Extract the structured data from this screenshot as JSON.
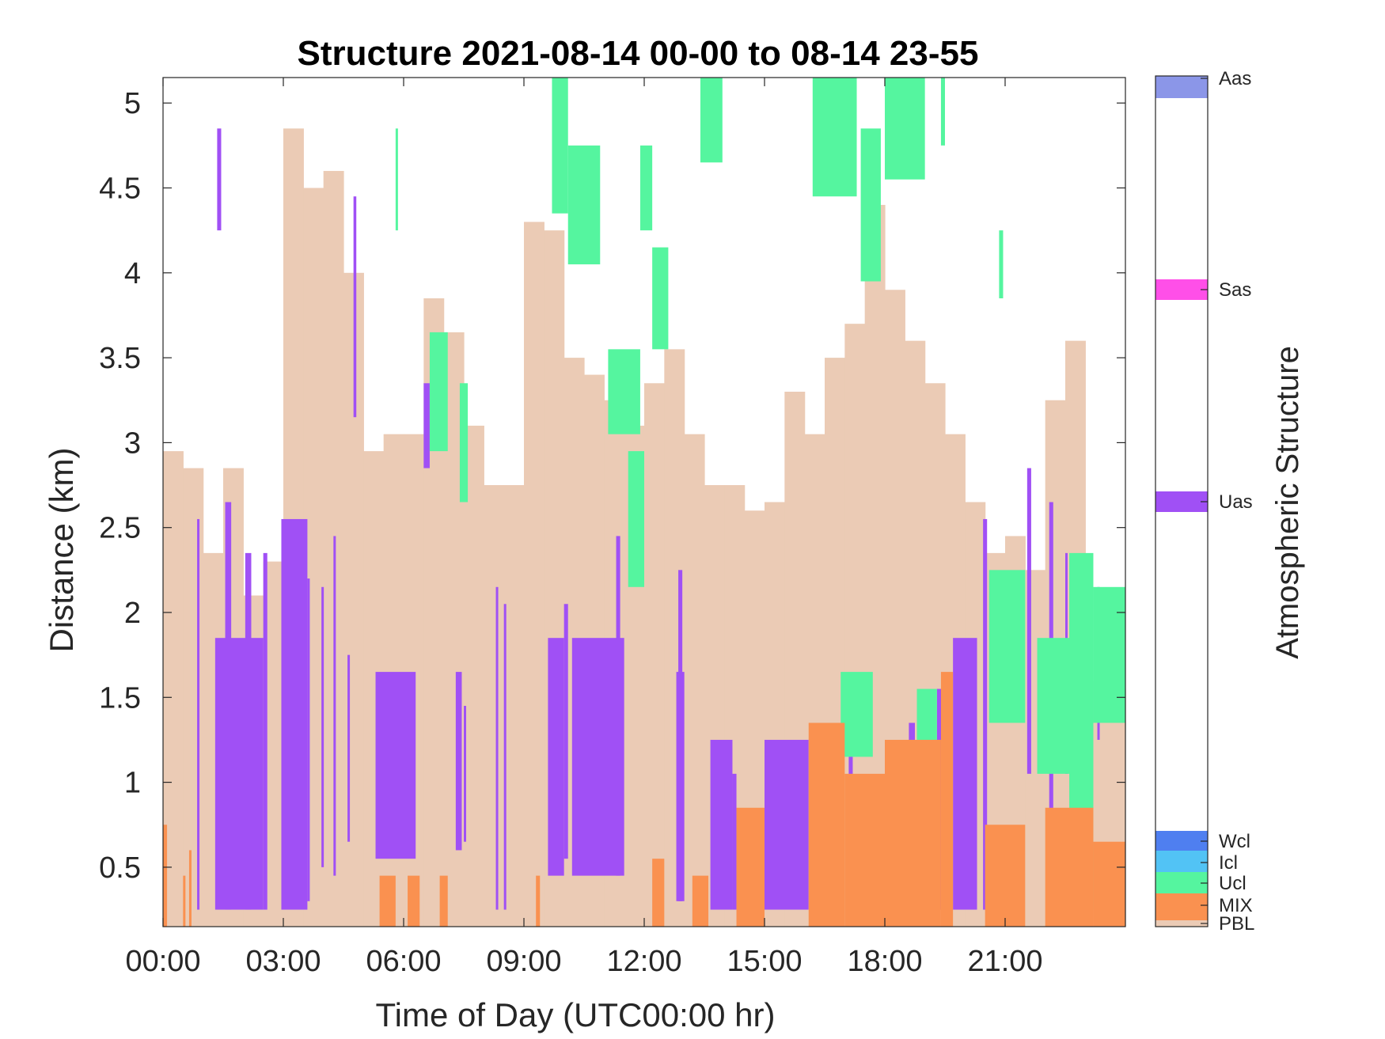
{
  "chart_data": {
    "type": "heatmap",
    "title": "Structure 2021-08-14 00-00 to 08-14 23-55",
    "xlabel": "Time of Day (UTC00:00 hr)",
    "ylabel": "Distance (km)",
    "colorbar_label": "Atmospheric Structure",
    "x_unit": "hours",
    "xlim": [
      0,
      24
    ],
    "ylim": [
      0.15,
      5.15
    ],
    "x_ticks": [
      0,
      3,
      6,
      9,
      12,
      15,
      18,
      21
    ],
    "x_tick_labels": [
      "00:00",
      "03:00",
      "06:00",
      "09:00",
      "12:00",
      "15:00",
      "18:00",
      "21:00"
    ],
    "y_ticks": [
      0.5,
      1,
      1.5,
      2,
      2.5,
      3,
      3.5,
      4,
      4.5,
      5
    ],
    "y_tick_labels": [
      "0.5",
      "1",
      "1.5",
      "2",
      "2.5",
      "3",
      "3.5",
      "4",
      "4.5",
      "5"
    ],
    "grid": false,
    "classes": [
      {
        "label": "Aas",
        "color": "#8b96e8"
      },
      {
        "label": "Sas",
        "color": "#ff4fe8"
      },
      {
        "label": "Uas",
        "color": "#a050f5"
      },
      {
        "label": "Wcl",
        "color": "#4f7ff0"
      },
      {
        "label": "Icl",
        "color": "#52c3f5"
      },
      {
        "label": "Ucl",
        "color": "#55f59f"
      },
      {
        "label": "MIX",
        "color": "#fa9150"
      },
      {
        "label": "PBL",
        "color": "#ebcbb5"
      }
    ],
    "pbl_layer": {
      "class": "PBL",
      "x": [
        0,
        0.5,
        1,
        1.5,
        2,
        2.5,
        3,
        3.5,
        4,
        4.5,
        5,
        5.5,
        6,
        6.5,
        7,
        7.5,
        8,
        8.5,
        9,
        9.5,
        10,
        10.5,
        11,
        11.5,
        12,
        12.5,
        13,
        13.5,
        14,
        14.5,
        15,
        15.5,
        16,
        16.5,
        17,
        17.5,
        18,
        18.5,
        19,
        19.5,
        20,
        20.5,
        21,
        21.5,
        22,
        22.5,
        23,
        23.5,
        24
      ],
      "top_km": [
        2.95,
        2.85,
        2.35,
        2.85,
        2.1,
        2.3,
        4.85,
        4.5,
        4.6,
        4.0,
        2.95,
        3.05,
        3.05,
        3.85,
        3.65,
        3.1,
        2.75,
        2.75,
        4.3,
        4.25,
        3.5,
        3.4,
        3.25,
        3.1,
        3.35,
        3.55,
        3.05,
        2.75,
        2.75,
        2.6,
        2.65,
        3.3,
        3.05,
        3.5,
        3.7,
        4.4,
        3.9,
        3.6,
        3.35,
        3.05,
        2.65,
        2.35,
        2.45,
        2.25,
        3.25,
        3.6,
        1.6,
        1.55,
        1.55
      ]
    },
    "segments": [
      {
        "class": "Uas",
        "x0": 0.85,
        "x1": 0.9,
        "y0": 0.25,
        "y1": 2.55
      },
      {
        "class": "Uas",
        "x0": 1.3,
        "x1": 2.5,
        "y0": 0.25,
        "y1": 1.85
      },
      {
        "class": "Uas",
        "x0": 1.35,
        "x1": 1.45,
        "y0": 4.25,
        "y1": 4.85
      },
      {
        "class": "Uas",
        "x0": 1.55,
        "x1": 1.7,
        "y0": 0.25,
        "y1": 2.65
      },
      {
        "class": "Uas",
        "x0": 2.05,
        "x1": 2.2,
        "y0": 0.25,
        "y1": 2.35
      },
      {
        "class": "Uas",
        "x0": 2.5,
        "x1": 2.6,
        "y0": 0.25,
        "y1": 2.35
      },
      {
        "class": "Uas",
        "x0": 2.95,
        "x1": 3.6,
        "y0": 0.25,
        "y1": 2.55
      },
      {
        "class": "Uas",
        "x0": 3.6,
        "x1": 3.65,
        "y0": 0.3,
        "y1": 2.2
      },
      {
        "class": "Uas",
        "x0": 3.95,
        "x1": 4.0,
        "y0": 0.5,
        "y1": 2.15
      },
      {
        "class": "Uas",
        "x0": 4.25,
        "x1": 4.3,
        "y0": 0.45,
        "y1": 2.45
      },
      {
        "class": "Uas",
        "x0": 4.6,
        "x1": 4.65,
        "y0": 0.65,
        "y1": 1.75
      },
      {
        "class": "Uas",
        "x0": 4.75,
        "x1": 4.82,
        "y0": 3.15,
        "y1": 4.45
      },
      {
        "class": "Uas",
        "x0": 5.3,
        "x1": 6.3,
        "y0": 0.55,
        "y1": 1.65
      },
      {
        "class": "Uas",
        "x0": 6.5,
        "x1": 6.65,
        "y0": 2.85,
        "y1": 3.35
      },
      {
        "class": "Uas",
        "x0": 7.3,
        "x1": 7.45,
        "y0": 0.6,
        "y1": 1.65
      },
      {
        "class": "Uas",
        "x0": 7.5,
        "x1": 7.55,
        "y0": 0.65,
        "y1": 1.45
      },
      {
        "class": "Uas",
        "x0": 8.3,
        "x1": 8.35,
        "y0": 0.25,
        "y1": 2.15
      },
      {
        "class": "Uas",
        "x0": 8.5,
        "x1": 8.55,
        "y0": 0.25,
        "y1": 2.05
      },
      {
        "class": "Uas",
        "x0": 9.6,
        "x1": 10.0,
        "y0": 0.45,
        "y1": 1.85
      },
      {
        "class": "Uas",
        "x0": 10.0,
        "x1": 10.1,
        "y0": 0.55,
        "y1": 2.05
      },
      {
        "class": "Uas",
        "x0": 10.2,
        "x1": 11.5,
        "y0": 0.45,
        "y1": 1.85
      },
      {
        "class": "Uas",
        "x0": 11.3,
        "x1": 11.4,
        "y0": 0.45,
        "y1": 2.45
      },
      {
        "class": "Uas",
        "x0": 12.8,
        "x1": 13.0,
        "y0": 0.3,
        "y1": 1.65
      },
      {
        "class": "Uas",
        "x0": 12.85,
        "x1": 12.95,
        "y0": 0.3,
        "y1": 2.25
      },
      {
        "class": "Uas",
        "x0": 13.65,
        "x1": 14.2,
        "y0": 0.25,
        "y1": 1.25
      },
      {
        "class": "Uas",
        "x0": 14.2,
        "x1": 14.3,
        "y0": 0.25,
        "y1": 1.05
      },
      {
        "class": "Uas",
        "x0": 15.0,
        "x1": 16.1,
        "y0": 0.25,
        "y1": 1.25
      },
      {
        "class": "Uas",
        "x0": 17.1,
        "x1": 17.2,
        "y0": 0.35,
        "y1": 1.55
      },
      {
        "class": "Uas",
        "x0": 18.6,
        "x1": 18.75,
        "y0": 0.25,
        "y1": 1.35
      },
      {
        "class": "Uas",
        "x0": 19.3,
        "x1": 19.45,
        "y0": 0.25,
        "y1": 1.55
      },
      {
        "class": "Uas",
        "x0": 19.7,
        "x1": 20.3,
        "y0": 0.25,
        "y1": 1.85
      },
      {
        "class": "Uas",
        "x0": 20.45,
        "x1": 20.55,
        "y0": 0.25,
        "y1": 2.55
      },
      {
        "class": "Uas",
        "x0": 21.55,
        "x1": 21.65,
        "y0": 1.05,
        "y1": 2.85
      },
      {
        "class": "Uas",
        "x0": 22.1,
        "x1": 22.2,
        "y0": 0.55,
        "y1": 2.65
      },
      {
        "class": "Uas",
        "x0": 22.5,
        "x1": 22.55,
        "y0": 1.05,
        "y1": 2.35
      },
      {
        "class": "Uas",
        "x0": 23.3,
        "x1": 23.35,
        "y0": 1.25,
        "y1": 2.15
      },
      {
        "class": "Ucl",
        "x0": 5.8,
        "x1": 5.85,
        "y0": 4.25,
        "y1": 4.85
      },
      {
        "class": "Ucl",
        "x0": 6.65,
        "x1": 7.1,
        "y0": 2.95,
        "y1": 3.65
      },
      {
        "class": "Ucl",
        "x0": 7.4,
        "x1": 7.6,
        "y0": 2.65,
        "y1": 3.35
      },
      {
        "class": "Ucl",
        "x0": 9.7,
        "x1": 10.1,
        "y0": 4.35,
        "y1": 5.15
      },
      {
        "class": "Ucl",
        "x0": 10.1,
        "x1": 10.9,
        "y0": 4.05,
        "y1": 4.75
      },
      {
        "class": "Ucl",
        "x0": 11.1,
        "x1": 11.9,
        "y0": 3.05,
        "y1": 3.55
      },
      {
        "class": "Ucl",
        "x0": 11.6,
        "x1": 12.0,
        "y0": 2.15,
        "y1": 2.95
      },
      {
        "class": "Ucl",
        "x0": 11.9,
        "x1": 12.2,
        "y0": 4.25,
        "y1": 4.75
      },
      {
        "class": "Ucl",
        "x0": 12.2,
        "x1": 12.6,
        "y0": 3.55,
        "y1": 4.15
      },
      {
        "class": "Ucl",
        "x0": 13.4,
        "x1": 13.95,
        "y0": 4.65,
        "y1": 5.15
      },
      {
        "class": "Ucl",
        "x0": 16.2,
        "x1": 17.3,
        "y0": 4.45,
        "y1": 5.15
      },
      {
        "class": "Ucl",
        "x0": 17.4,
        "x1": 17.9,
        "y0": 3.95,
        "y1": 4.85
      },
      {
        "class": "Ucl",
        "x0": 18.0,
        "x1": 19.0,
        "y0": 4.55,
        "y1": 5.15
      },
      {
        "class": "Ucl",
        "x0": 19.4,
        "x1": 19.5,
        "y0": 4.75,
        "y1": 5.15
      },
      {
        "class": "Ucl",
        "x0": 20.85,
        "x1": 20.95,
        "y0": 3.85,
        "y1": 4.25
      },
      {
        "class": "Ucl",
        "x0": 16.9,
        "x1": 17.7,
        "y0": 1.15,
        "y1": 1.65
      },
      {
        "class": "Ucl",
        "x0": 18.8,
        "x1": 19.3,
        "y0": 1.05,
        "y1": 1.55
      },
      {
        "class": "Ucl",
        "x0": 20.6,
        "x1": 21.5,
        "y0": 1.35,
        "y1": 2.25
      },
      {
        "class": "Ucl",
        "x0": 21.8,
        "x1": 22.8,
        "y0": 1.05,
        "y1": 1.85
      },
      {
        "class": "Ucl",
        "x0": 22.6,
        "x1": 23.2,
        "y0": 0.25,
        "y1": 2.35
      },
      {
        "class": "Ucl",
        "x0": 23.2,
        "x1": 24.0,
        "y0": 1.35,
        "y1": 2.15
      },
      {
        "class": "MIX",
        "x0": 0.0,
        "x1": 0.1,
        "y0": 0.15,
        "y1": 0.75
      },
      {
        "class": "MIX",
        "x0": 0.5,
        "x1": 0.55,
        "y0": 0.15,
        "y1": 0.45
      },
      {
        "class": "MIX",
        "x0": 0.65,
        "x1": 0.7,
        "y0": 0.15,
        "y1": 0.6
      },
      {
        "class": "MIX",
        "x0": 5.4,
        "x1": 5.8,
        "y0": 0.15,
        "y1": 0.45
      },
      {
        "class": "MIX",
        "x0": 6.1,
        "x1": 6.4,
        "y0": 0.15,
        "y1": 0.45
      },
      {
        "class": "MIX",
        "x0": 6.9,
        "x1": 7.1,
        "y0": 0.15,
        "y1": 0.45
      },
      {
        "class": "MIX",
        "x0": 9.3,
        "x1": 9.4,
        "y0": 0.15,
        "y1": 0.45
      },
      {
        "class": "MIX",
        "x0": 12.2,
        "x1": 12.5,
        "y0": 0.15,
        "y1": 0.55
      },
      {
        "class": "MIX",
        "x0": 13.2,
        "x1": 13.6,
        "y0": 0.15,
        "y1": 0.45
      },
      {
        "class": "MIX",
        "x0": 14.3,
        "x1": 15.0,
        "y0": 0.15,
        "y1": 0.85
      },
      {
        "class": "MIX",
        "x0": 16.1,
        "x1": 17.0,
        "y0": 0.15,
        "y1": 1.35
      },
      {
        "class": "MIX",
        "x0": 17.0,
        "x1": 18.0,
        "y0": 0.15,
        "y1": 1.05
      },
      {
        "class": "MIX",
        "x0": 18.0,
        "x1": 19.4,
        "y0": 0.15,
        "y1": 1.25
      },
      {
        "class": "MIX",
        "x0": 19.4,
        "x1": 19.7,
        "y0": 0.15,
        "y1": 1.65
      },
      {
        "class": "MIX",
        "x0": 20.5,
        "x1": 21.5,
        "y0": 0.15,
        "y1": 0.75
      },
      {
        "class": "MIX",
        "x0": 22.0,
        "x1": 23.2,
        "y0": 0.15,
        "y1": 0.85
      },
      {
        "class": "MIX",
        "x0": 23.2,
        "x1": 24.0,
        "y0": 0.15,
        "y1": 0.65
      }
    ]
  }
}
